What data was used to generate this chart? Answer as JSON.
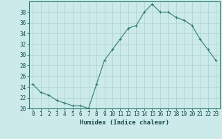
{
  "x": [
    0,
    1,
    2,
    3,
    4,
    5,
    6,
    7,
    8,
    9,
    10,
    11,
    12,
    13,
    14,
    15,
    16,
    17,
    18,
    19,
    20,
    21,
    22,
    23
  ],
  "y": [
    24.5,
    23,
    22.5,
    21.5,
    21,
    20.5,
    20.5,
    20,
    24.5,
    29,
    31,
    33,
    35,
    35.5,
    38,
    39.5,
    38,
    38,
    37,
    36.5,
    35.5,
    33,
    31,
    29
  ],
  "line_color": "#2e7d6e",
  "marker_color": "#2e7d6e",
  "bg_color": "#cceaea",
  "grid_color": "#aad0d0",
  "xlabel": "Humidex (Indice chaleur)",
  "ylim": [
    20,
    40
  ],
  "xlim": [
    -0.5,
    23.5
  ],
  "yticks": [
    20,
    22,
    24,
    26,
    28,
    30,
    32,
    34,
    36,
    38
  ],
  "xticks": [
    0,
    1,
    2,
    3,
    4,
    5,
    6,
    7,
    8,
    9,
    10,
    11,
    12,
    13,
    14,
    15,
    16,
    17,
    18,
    19,
    20,
    21,
    22,
    23
  ],
  "label_fontsize": 6.5,
  "tick_fontsize": 5.5
}
